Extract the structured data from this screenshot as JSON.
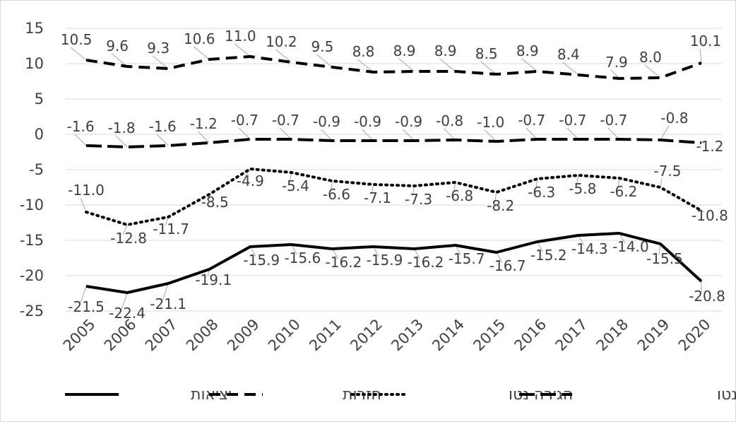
{
  "chart_data": {
    "type": "line",
    "title": "",
    "xlabel": "",
    "ylabel": "",
    "x": [
      "2005",
      "2006",
      "2007",
      "2008",
      "2009",
      "2010",
      "2011",
      "2012",
      "2013",
      "2014",
      "2015",
      "2016",
      "2017",
      "2018",
      "2019",
      "2020"
    ],
    "ylim": [
      -25,
      15
    ],
    "yticks": [
      "15",
      "10",
      "5",
      "0",
      "-5",
      "-10",
      "-15",
      "-20",
      "-25"
    ],
    "grid": true,
    "legend_position": "bottom",
    "series": [
      {
        "name": "יציאות",
        "style": "solid",
        "color": "#000000",
        "values": [
          -21.5,
          -22.4,
          -21.1,
          -19.1,
          -15.9,
          -15.6,
          -16.2,
          -15.9,
          -16.2,
          -15.7,
          -16.7,
          -15.2,
          -14.3,
          -14.0,
          -15.5,
          -20.8
        ],
        "labels": [
          "-21.5",
          "-22.4",
          "-21.1",
          "-19.1",
          "-15.9",
          "-15.6",
          "-16.2",
          "-15.9",
          "-16.2",
          "-15.7",
          "-16.7",
          "-15.2",
          "-14.3",
          "-14.0",
          "-15.5",
          "-20.8"
        ]
      },
      {
        "name": "חזרות",
        "style": "dashed",
        "color": "#000000",
        "values": [
          10.5,
          9.6,
          9.3,
          10.6,
          11.0,
          10.2,
          9.5,
          8.8,
          8.9,
          8.9,
          8.5,
          8.9,
          8.4,
          7.9,
          8.0,
          10.1
        ],
        "labels": [
          "10.5",
          "9.6",
          "9.3",
          "10.6",
          "11.0",
          "10.2",
          "9.5",
          "8.8",
          "8.9",
          "8.9",
          "8.5",
          "8.9",
          "8.4",
          "7.9",
          "8.0",
          "10.1"
        ]
      },
      {
        "name": "הגירה נטו",
        "style": "dotted",
        "color": "#000000",
        "values": [
          -11.0,
          -12.8,
          -11.7,
          -8.5,
          -4.9,
          -5.4,
          -6.6,
          -7.1,
          -7.3,
          -6.8,
          -8.2,
          -6.3,
          -5.8,
          -6.2,
          -7.5,
          -10.8
        ],
        "labels": [
          "-11.0",
          "-12.8",
          "-11.7",
          "-8.5",
          "-4.9",
          "-5.4",
          "-6.6",
          "-7.1",
          "-7.3",
          "-6.8",
          "-8.2",
          "-6.3",
          "-5.8",
          "-6.2",
          "-7.5",
          "-10.8"
        ]
      },
      {
        "name": "שיעור הגירה נטו",
        "style": "longdash",
        "color": "#000000",
        "values": [
          -1.6,
          -1.8,
          -1.6,
          -1.2,
          -0.7,
          -0.7,
          -0.9,
          -0.9,
          -0.9,
          -0.8,
          -1.0,
          -0.7,
          -0.7,
          -0.7,
          -0.8,
          -1.2
        ],
        "labels": [
          "-1.6",
          "-1.8",
          "-1.6",
          "-1.2",
          "-0.7",
          "-0.7",
          "-0.9",
          "-0.9",
          "-0.9",
          "-0.8",
          "-1.0",
          "-0.7",
          "-0.7",
          "-0.7",
          "-0.8",
          "-1.2"
        ]
      }
    ]
  }
}
